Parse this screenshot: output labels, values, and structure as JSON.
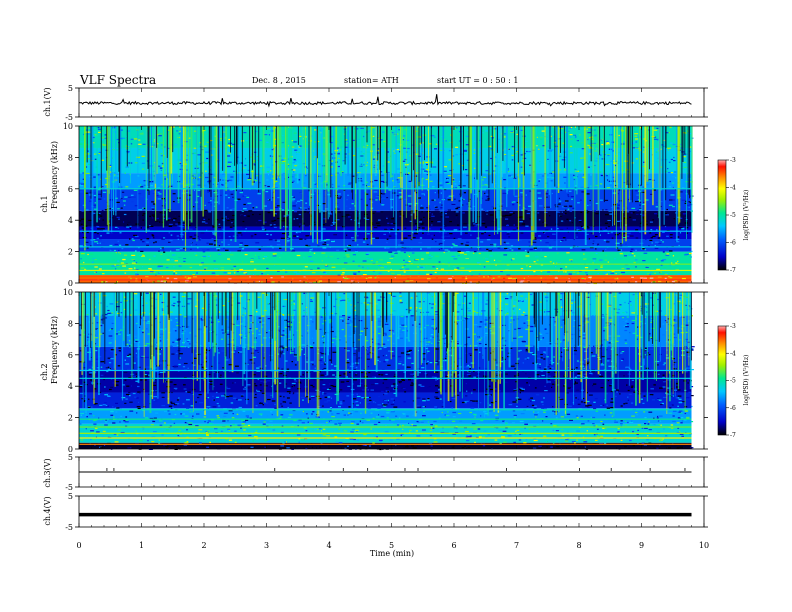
{
  "header": {
    "title": "VLF  Spectra",
    "date": "Dec. 8  , 2015",
    "station": "station= ATH",
    "start": "start  UT  =    0  : 50 : 1"
  },
  "labels": {
    "ch1_volt": "ch.1(V)",
    "ch1_freq": "ch.1",
    "ch1_freq2": "Frequency  (kHz)",
    "ch2_freq": "ch.2",
    "ch2_freq2": "Frequency  (kHz)",
    "ch3_volt": "ch.3(V)",
    "ch4_volt": "ch.4(V)",
    "colorbar_label": "log(PSD) (V²/Hz)",
    "xlabel": "Time  (min)"
  },
  "chart_data": [
    {
      "type": "line",
      "panel": "ch.1 waveform",
      "ylabel": "ch.1(V)",
      "ylim": [
        -5,
        5
      ],
      "yticks": [
        5,
        -5
      ],
      "xlim": [
        0,
        10
      ],
      "baseline_value": 0,
      "data_span_min": [
        0,
        9.8
      ]
    },
    {
      "type": "heatmap",
      "panel": "ch.1 spectrogram",
      "ylabel": "Frequency (kHz)",
      "ylim": [
        0,
        10
      ],
      "yticks": [
        0,
        2,
        4,
        6,
        8,
        10
      ],
      "xlim": [
        0,
        10
      ],
      "data_span_min": [
        0,
        9.8
      ],
      "color_scale": {
        "min": -7,
        "max": -3,
        "ticks": [
          -3,
          -4,
          -5,
          -6,
          -7
        ],
        "label": "log(PSD) (V²/Hz)"
      },
      "bands": [
        {
          "f0": 0,
          "f1": 0.5,
          "level": -3.5
        },
        {
          "f0": 0.5,
          "f1": 2,
          "level": -5.0
        },
        {
          "f0": 2,
          "f1": 2.8,
          "level": -6.1
        },
        {
          "f0": 2.8,
          "f1": 3.6,
          "level": -6.5
        },
        {
          "f0": 3.6,
          "f1": 4.6,
          "level": -6.8
        },
        {
          "f0": 4.6,
          "f1": 6,
          "level": -6.1
        },
        {
          "f0": 6,
          "f1": 7,
          "level": -5.6
        },
        {
          "f0": 7,
          "f1": 8.6,
          "level": -5.3
        },
        {
          "f0": 8.6,
          "f1": 10,
          "level": -5.1
        }
      ]
    },
    {
      "type": "heatmap",
      "panel": "ch.2 spectrogram",
      "ylabel": "Frequency (kHz)",
      "ylim": [
        0,
        10
      ],
      "yticks": [
        0,
        2,
        4,
        6,
        8,
        10
      ],
      "xlim": [
        0,
        10
      ],
      "data_span_min": [
        0,
        9.8
      ],
      "color_scale": {
        "min": -7,
        "max": -3,
        "ticks": [
          -3,
          -4,
          -5,
          -6,
          -7
        ],
        "label": "log(PSD) (V²/Hz)"
      },
      "bands": [
        {
          "f0": 0,
          "f1": 0.4,
          "level": -6.9
        },
        {
          "f0": 0.4,
          "f1": 1.6,
          "level": -5.2
        },
        {
          "f0": 1.6,
          "f1": 2.6,
          "level": -5.6
        },
        {
          "f0": 2.6,
          "f1": 3.6,
          "level": -6.3
        },
        {
          "f0": 3.6,
          "f1": 5,
          "level": -6.6
        },
        {
          "f0": 5,
          "f1": 6.5,
          "level": -6.2
        },
        {
          "f0": 6.5,
          "f1": 8.5,
          "level": -5.7
        },
        {
          "f0": 8.5,
          "f1": 10,
          "level": -5.3
        }
      ]
    },
    {
      "type": "line",
      "panel": "ch.3 waveform",
      "ylabel": "ch.3(V)",
      "ylim": [
        -5,
        5
      ],
      "yticks": [
        5,
        -5
      ],
      "xlim": [
        0,
        10
      ],
      "baseline_value": 0,
      "data_span_min": [
        0,
        9.8
      ]
    },
    {
      "type": "line",
      "panel": "ch.4 waveform",
      "ylabel": "ch.4(V)",
      "ylim": [
        -5,
        5
      ],
      "yticks": [
        5,
        -5
      ],
      "xlim": [
        0,
        10
      ],
      "baseline_value": -1,
      "data_span_min": [
        0,
        9.8
      ]
    }
  ],
  "xaxis": {
    "label": "Time  (min)",
    "ticks": [
      "0",
      "1",
      "2",
      "3",
      "4",
      "5",
      "6",
      "7",
      "8",
      "9",
      "10"
    ]
  }
}
